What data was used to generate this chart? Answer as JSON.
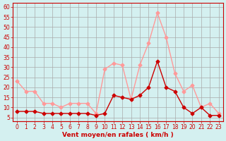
{
  "hours": [
    0,
    1,
    2,
    3,
    4,
    5,
    6,
    7,
    8,
    9,
    10,
    11,
    12,
    13,
    14,
    15,
    16,
    17,
    18,
    19,
    20,
    21,
    22,
    23
  ],
  "vent_moyen": [
    8,
    8,
    8,
    7,
    7,
    7,
    7,
    7,
    7,
    6,
    7,
    16,
    15,
    14,
    16,
    20,
    33,
    20,
    18,
    10,
    7,
    10,
    6,
    6
  ],
  "en_rafales": [
    23,
    18,
    18,
    12,
    12,
    10,
    12,
    12,
    12,
    7,
    29,
    32,
    31,
    14,
    31,
    42,
    57,
    45,
    27,
    18,
    21,
    10,
    12,
    7
  ],
  "xlabel": "Vent moyen/en rafales ( km/h )",
  "yticks": [
    5,
    10,
    15,
    20,
    25,
    30,
    35,
    40,
    45,
    50,
    55,
    60
  ],
  "xticks": [
    0,
    1,
    2,
    3,
    4,
    5,
    6,
    7,
    8,
    9,
    10,
    11,
    12,
    13,
    14,
    15,
    16,
    17,
    18,
    19,
    20,
    21,
    22,
    23
  ],
  "color_moyen": "#cc0000",
  "color_rafales": "#ff9999",
  "bg_color": "#d4f0f0",
  "grid_color": "#aaaaaa",
  "ymin": 3,
  "ymax": 62
}
